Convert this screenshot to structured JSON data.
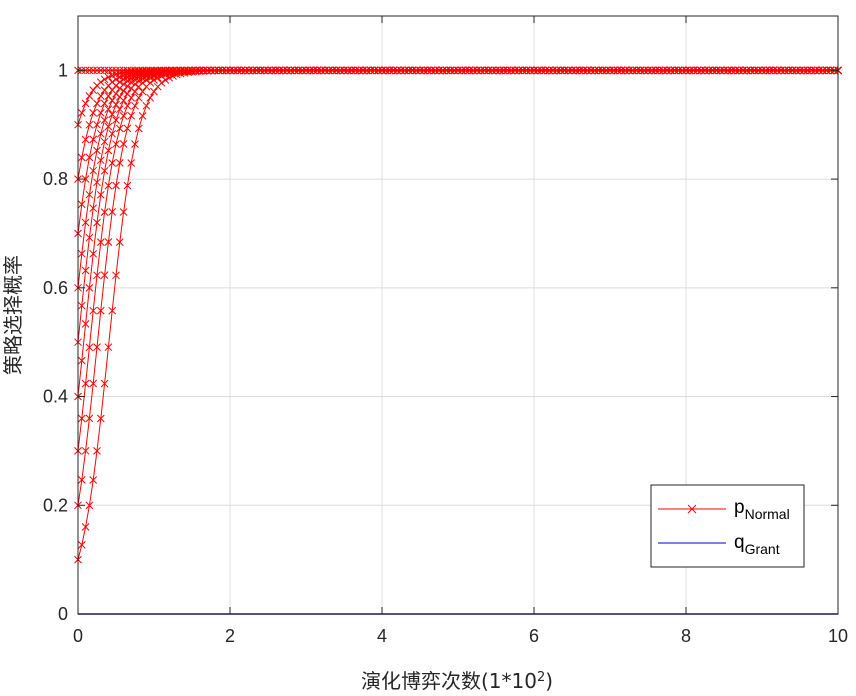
{
  "chart_data": {
    "type": "line",
    "title": "",
    "xlabel": "演化博弈次数(1*10",
    "xlabel_sup": "2",
    "xlabel_close": ")",
    "ylabel": "策略选择概率",
    "xlim": [
      0,
      10
    ],
    "ylim": [
      0,
      1.1
    ],
    "x_ticks": [
      0,
      2,
      4,
      6,
      8,
      10
    ],
    "x_tick_labels": [
      "0",
      "2",
      "4",
      "6",
      "8",
      "10"
    ],
    "y_ticks": [
      0,
      0.2,
      0.4,
      0.6,
      0.8,
      1
    ],
    "y_tick_labels": [
      "0",
      "0.2",
      "0.4",
      "0.6",
      "0.8",
      "1"
    ],
    "grid": true,
    "legend_position": "bottom-right",
    "series": [
      {
        "name": "p",
        "name_sub": "Normal",
        "color": "#ff0000",
        "marker": "x",
        "description_values": "family of logistic curves from initial values 0.1..1.0 rising to 1",
        "initial_values": [
          0.1,
          0.2,
          0.3,
          0.4,
          0.5,
          0.6,
          0.7,
          0.8,
          0.9,
          1.0
        ],
        "growth_rate": 5.4,
        "converges_to": 1
      },
      {
        "name": "q",
        "name_sub": "Grant",
        "color": "#0000cc",
        "marker": "none",
        "x": [
          0,
          10
        ],
        "values": [
          0,
          0
        ]
      }
    ]
  }
}
